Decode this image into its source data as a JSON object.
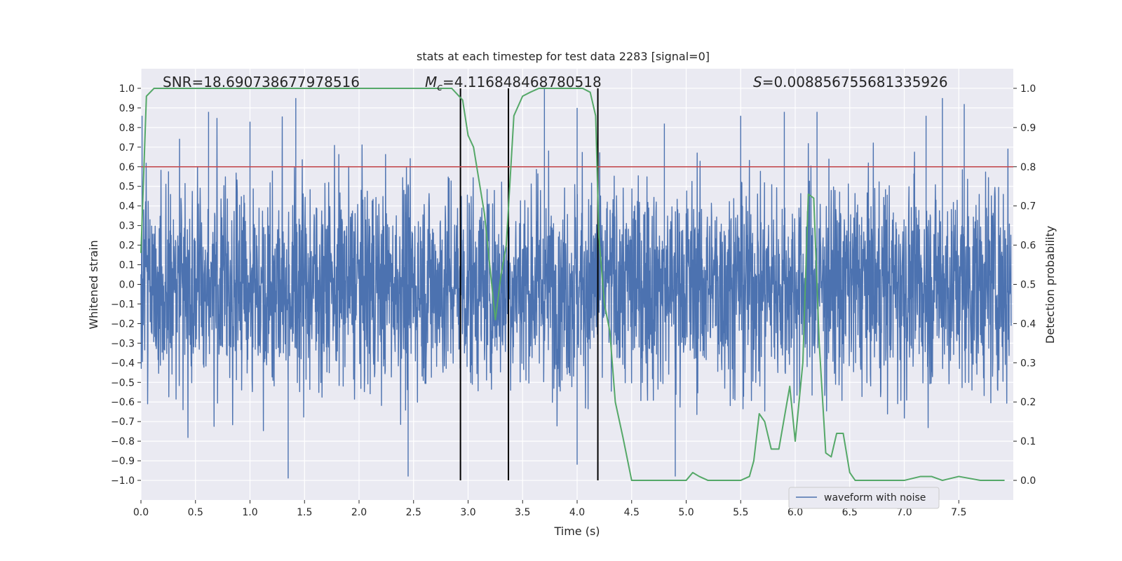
{
  "chart_data": {
    "type": "line",
    "title": "stats at each timestep for test data 2283 [signal=0]",
    "xlabel": "Time (s)",
    "ylabel": "Whitened strain",
    "y2label": "Detection probability",
    "xlim": [
      0.0,
      8.0
    ],
    "ylim": [
      -1.1,
      1.1
    ],
    "y2lim": [
      -0.05,
      1.05
    ],
    "xticks": [
      "0.0",
      "0.5",
      "1.0",
      "1.5",
      "2.0",
      "2.5",
      "3.0",
      "3.5",
      "4.0",
      "4.5",
      "5.0",
      "5.5",
      "6.0",
      "6.5",
      "7.0",
      "7.5"
    ],
    "yticks": [
      "1.0",
      "0.9",
      "0.8",
      "0.7",
      "0.6",
      "0.5",
      "0.4",
      "0.3",
      "0.2",
      "0.1",
      "0.0",
      "−0.1",
      "−0.2",
      "−0.3",
      "−0.4",
      "−0.5",
      "−0.6",
      "−0.7",
      "−0.8",
      "−0.9",
      "−1.0"
    ],
    "y2ticks": [
      "1.0",
      "0.9",
      "0.8",
      "0.7",
      "0.6",
      "0.5",
      "0.4",
      "0.3",
      "0.2",
      "0.1",
      "0.0"
    ],
    "annotations": {
      "snr": "SNR=18.690738677978516",
      "mc": "=4.116848468780518",
      "mc_symbol": "M",
      "mc_sub": "c",
      "s": "=0.00885675568133592​6",
      "s_symbol": "S"
    },
    "threshold": {
      "value": 0.8,
      "axis": "right",
      "color": "#c44e52"
    },
    "vertical_lines": [
      {
        "x": 2.93,
        "y_from": -1.0,
        "y_to": 1.0
      },
      {
        "x": 3.37,
        "y_from": -1.0,
        "y_to": 1.0
      },
      {
        "x": 4.19,
        "y_from": -1.0,
        "y_to": 1.0
      }
    ],
    "series": [
      {
        "name": "waveform with noise",
        "axis": "left",
        "color": "#4c72b0",
        "kind": "noise",
        "typical_amplitude": 0.45,
        "notable_peaks": [
          {
            "x": 0.01,
            "y": 0.86
          },
          {
            "x": 0.62,
            "y": 0.88
          },
          {
            "x": 1.0,
            "y": 0.83
          },
          {
            "x": 1.42,
            "y": 0.95
          },
          {
            "x": 1.35,
            "y": -0.99
          },
          {
            "x": 2.45,
            "y": -0.98
          },
          {
            "x": 3.7,
            "y": 1.0
          },
          {
            "x": 4.0,
            "y": 0.9
          },
          {
            "x": 4.8,
            "y": 0.82
          },
          {
            "x": 4.9,
            "y": -0.98
          },
          {
            "x": 5.5,
            "y": 0.86
          },
          {
            "x": 5.9,
            "y": 0.88
          },
          {
            "x": 6.2,
            "y": 0.88
          },
          {
            "x": 7.2,
            "y": 0.86
          },
          {
            "x": 7.35,
            "y": 0.95
          },
          {
            "x": 7.55,
            "y": 0.92
          },
          {
            "x": 4.0,
            "y": -0.92
          }
        ]
      },
      {
        "name": "detection probability",
        "axis": "right",
        "color": "#55a868",
        "x": [
          0.0,
          0.05,
          0.12,
          0.2,
          0.5,
          1.0,
          1.5,
          2.0,
          2.5,
          2.7,
          2.85,
          2.95,
          3.0,
          3.05,
          3.15,
          3.25,
          3.3,
          3.35,
          3.42,
          3.5,
          3.57,
          3.65,
          3.75,
          3.85,
          3.95,
          4.05,
          4.12,
          4.17,
          4.2,
          4.25,
          4.3,
          4.35,
          4.42,
          4.5,
          4.7,
          4.9,
          5.0,
          5.06,
          5.12,
          5.2,
          5.3,
          5.4,
          5.5,
          5.58,
          5.62,
          5.67,
          5.72,
          5.78,
          5.85,
          5.9,
          5.95,
          6.0,
          6.07,
          6.12,
          6.17,
          6.22,
          6.28,
          6.33,
          6.38,
          6.44,
          6.5,
          6.55,
          6.6,
          6.7,
          6.8,
          7.0,
          7.15,
          7.25,
          7.35,
          7.5,
          7.7,
          7.92
        ],
        "y": [
          0.58,
          0.98,
          1.0,
          1.0,
          1.0,
          1.0,
          1.0,
          1.0,
          1.0,
          1.0,
          1.0,
          0.97,
          0.88,
          0.85,
          0.68,
          0.41,
          0.52,
          0.6,
          0.93,
          0.98,
          0.99,
          1.0,
          1.0,
          1.0,
          1.0,
          1.0,
          0.99,
          0.93,
          0.62,
          0.45,
          0.38,
          0.2,
          0.11,
          0.0,
          0.0,
          0.0,
          0.0,
          0.02,
          0.01,
          0.0,
          0.0,
          0.0,
          0.0,
          0.01,
          0.05,
          0.17,
          0.15,
          0.08,
          0.08,
          0.16,
          0.24,
          0.1,
          0.3,
          0.73,
          0.72,
          0.35,
          0.07,
          0.06,
          0.12,
          0.12,
          0.02,
          0.0,
          0.0,
          0.0,
          0.0,
          0.0,
          0.01,
          0.01,
          0.0,
          0.01,
          0.0,
          0.0
        ]
      }
    ],
    "legend": {
      "placement": "lower-right",
      "entries": [
        "waveform with noise"
      ]
    },
    "grid": true
  }
}
